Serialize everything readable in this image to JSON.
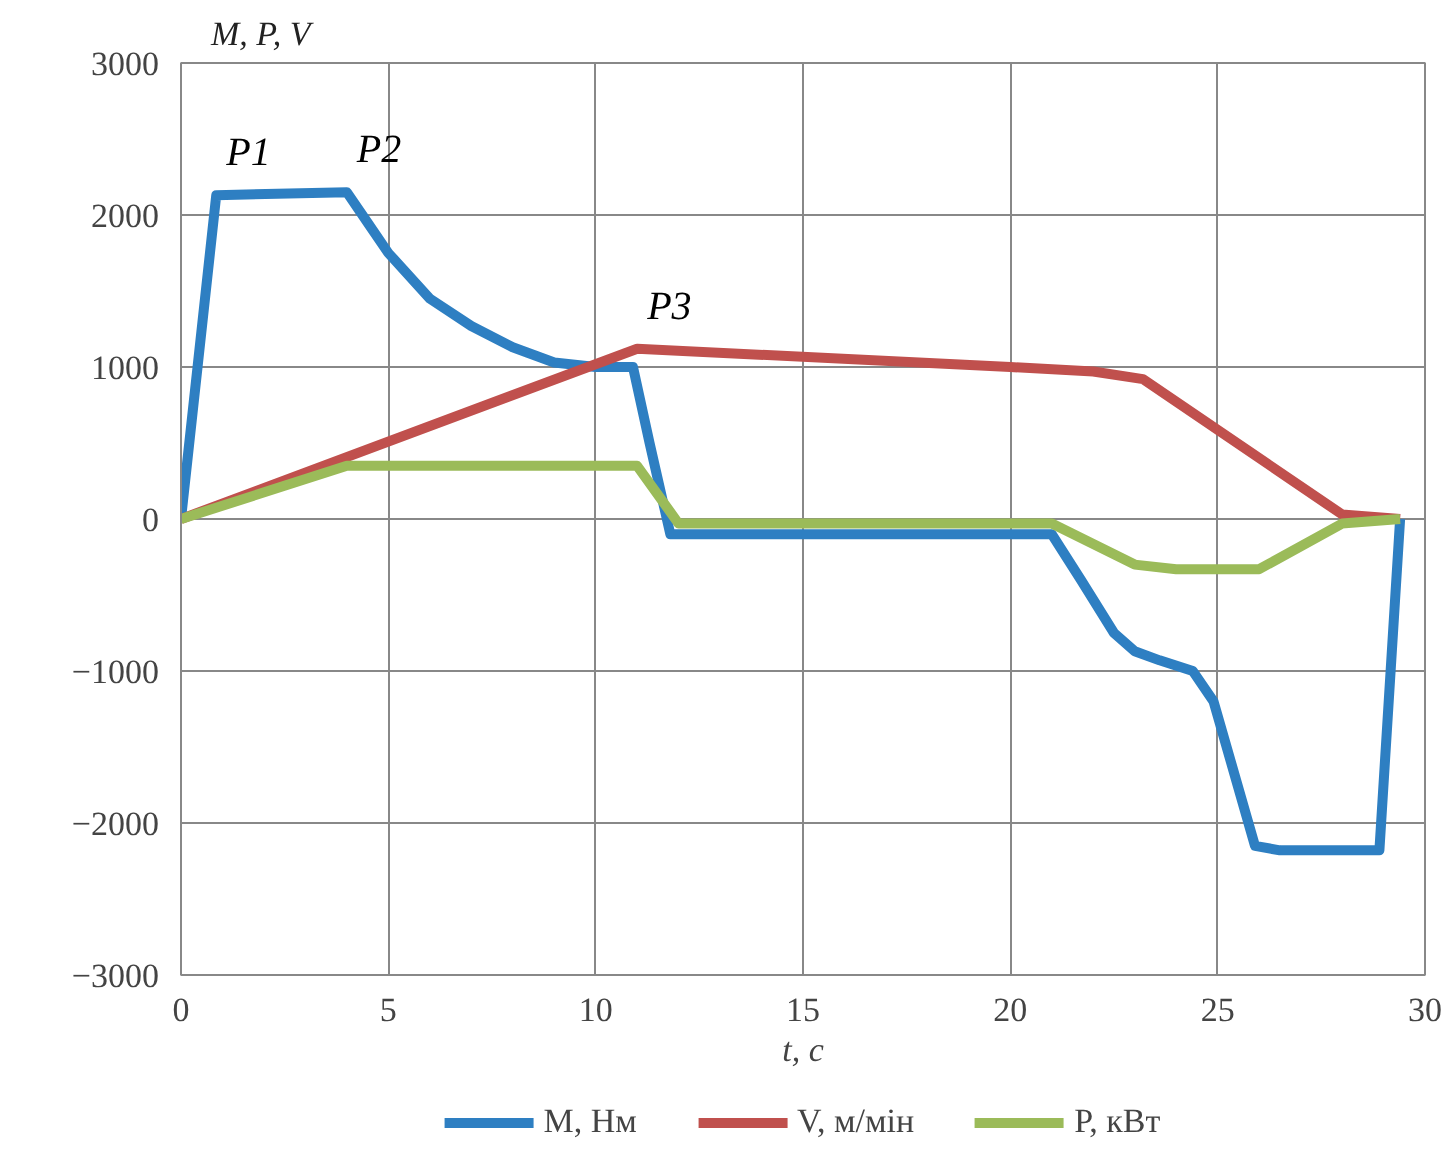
{
  "chart_data": {
    "type": "line",
    "ylabel": "M, P, V",
    "xlabel": "t, c",
    "xlim": [
      0,
      30
    ],
    "xticks": [
      0,
      5,
      10,
      15,
      20,
      25,
      30
    ],
    "ylim": [
      -3000,
      3000
    ],
    "yticks": [
      -3000,
      -2000,
      -1000,
      0,
      1000,
      2000,
      3000
    ],
    "grid": true,
    "legend": "bottom",
    "line_style": "solid",
    "marker": "none",
    "series": [
      {
        "name": "M, Нм",
        "color": "#2e7fc2",
        "x": [
          0,
          0.85,
          4,
          4.5,
          5,
          6,
          7,
          8,
          9,
          10,
          10.9,
          11.3,
          11.8,
          21,
          21.7,
          22.5,
          23,
          23.6,
          24.4,
          24.9,
          25.9,
          26.5,
          28.9,
          29.4
        ],
        "values": [
          0,
          2130,
          2150,
          1950,
          1750,
          1450,
          1270,
          1130,
          1030,
          1000,
          1000,
          500,
          -100,
          -100,
          -400,
          -750,
          -870,
          -930,
          -1000,
          -1200,
          -2150,
          -2180,
          -2180,
          0
        ]
      },
      {
        "name": "V, м/мін",
        "color": "#c0504d",
        "x": [
          0,
          11,
          20,
          22,
          23.2,
          28,
          29.4
        ],
        "values": [
          0,
          1120,
          1000,
          970,
          920,
          30,
          0
        ]
      },
      {
        "name": "P, кВт",
        "color": "#9bbb59",
        "x": [
          0,
          4,
          11,
          12,
          21,
          23,
          24,
          26,
          28,
          29.4
        ],
        "values": [
          0,
          350,
          350,
          -30,
          -30,
          -300,
          -330,
          -330,
          -30,
          0
        ]
      }
    ],
    "annotations": [
      {
        "text": "P1",
        "x": 0.85,
        "y": 2130
      },
      {
        "text": "P2",
        "x": 4,
        "y": 2150
      },
      {
        "text": "P3",
        "x": 11,
        "y": 1120
      }
    ]
  }
}
